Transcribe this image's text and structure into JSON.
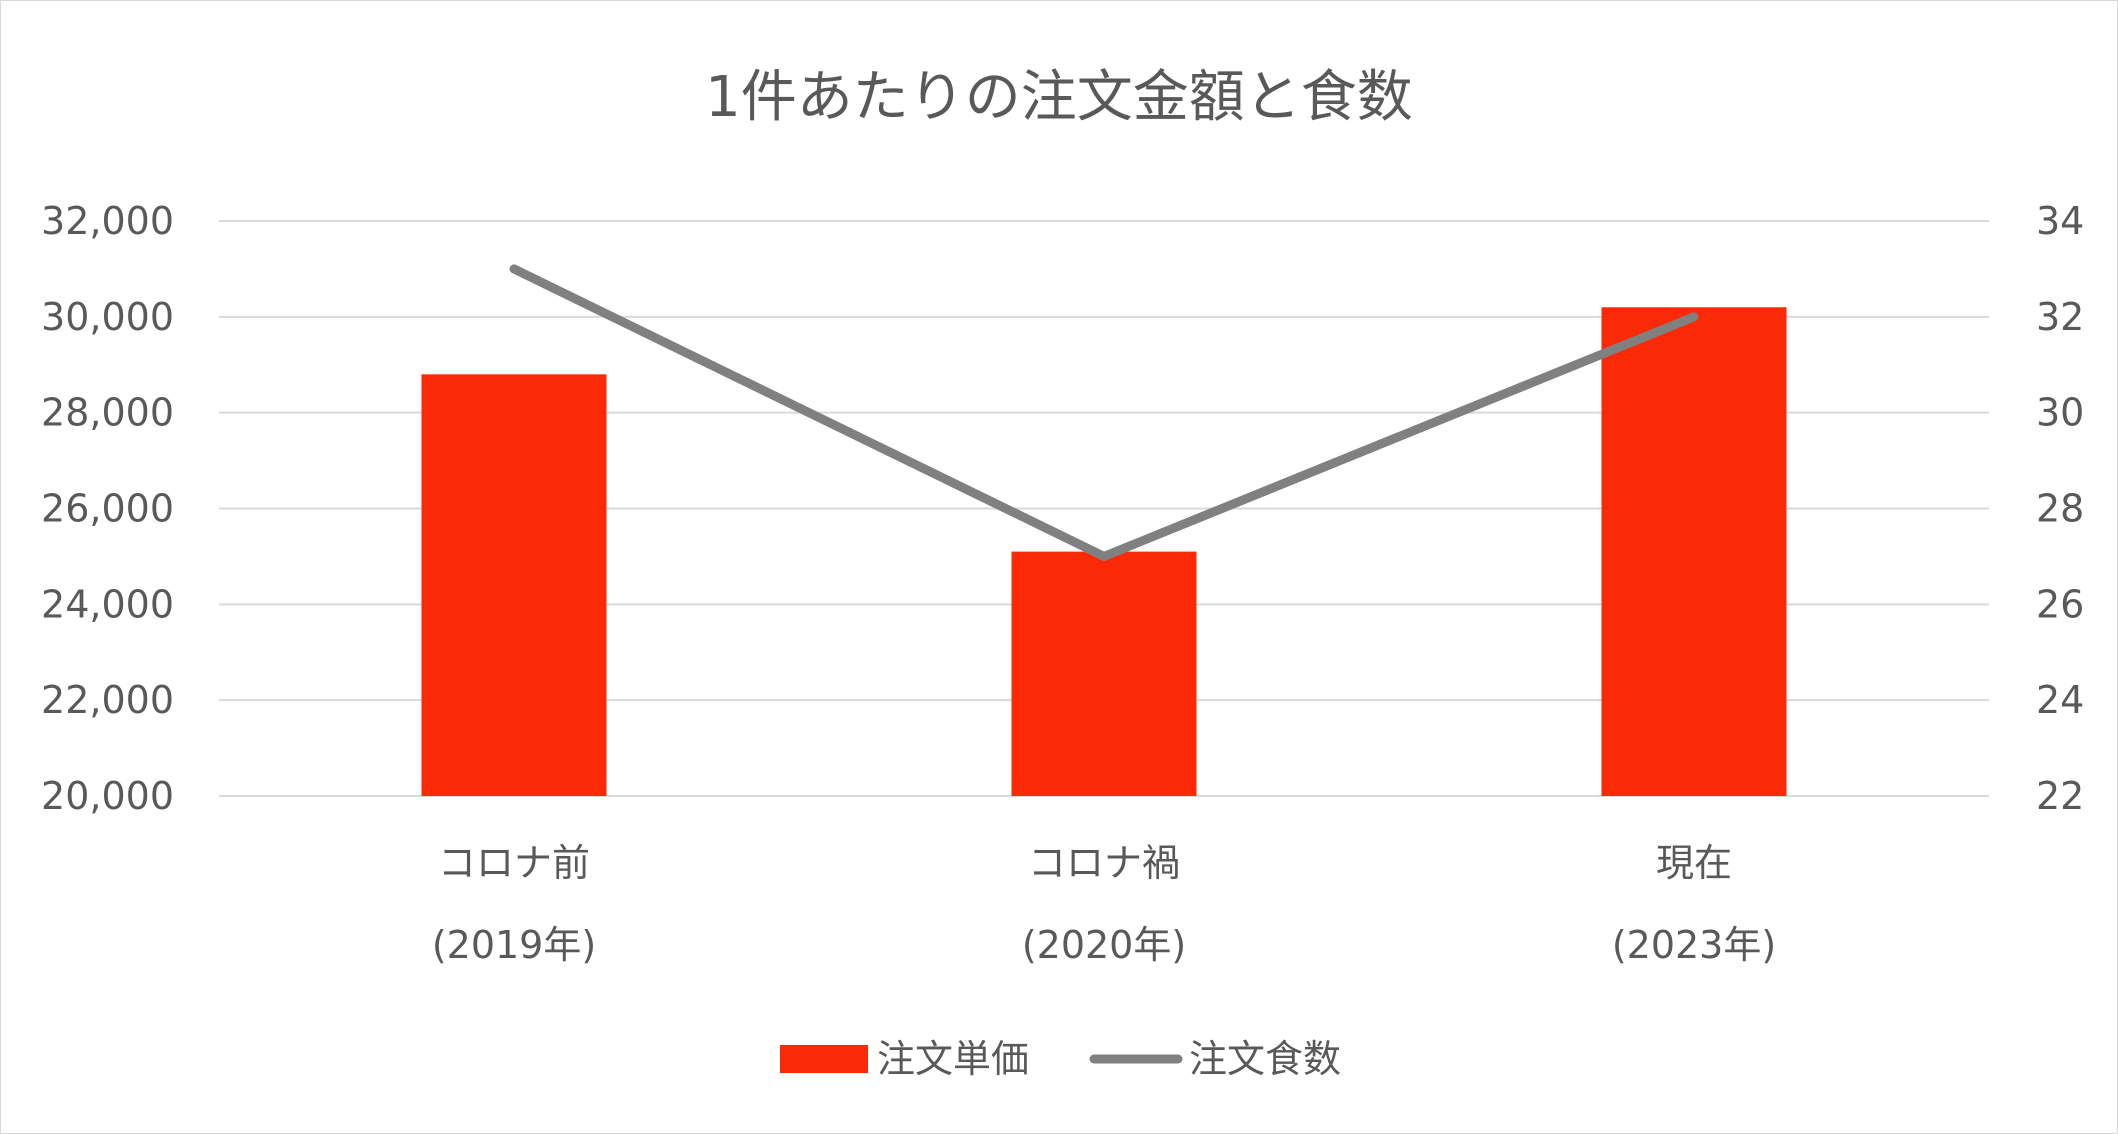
{
  "chart_data": {
    "type": "bar",
    "title": "1件あたりの注文金額と食数",
    "categories": [
      [
        "コロナ前",
        "(2019年)"
      ],
      [
        "コロナ禍",
        "(2020年)"
      ],
      [
        "現在",
        "(2023年)"
      ]
    ],
    "series": [
      {
        "name": "注文単価",
        "type": "bar",
        "axis": "left",
        "color": "#FA2A06",
        "values": [
          28800,
          25100,
          30200
        ]
      },
      {
        "name": "注文食数",
        "type": "line",
        "axis": "right",
        "color": "#808080",
        "values": [
          33,
          27,
          32
        ]
      }
    ],
    "y_left": {
      "min": 20000,
      "max": 32000,
      "ticks": [
        "20,000",
        "22,000",
        "24,000",
        "26,000",
        "28,000",
        "30,000",
        "32,000"
      ],
      "tick_values": [
        20000,
        22000,
        24000,
        26000,
        28000,
        30000,
        32000
      ]
    },
    "y_right": {
      "min": 22,
      "max": 34,
      "ticks": [
        "22",
        "24",
        "26",
        "28",
        "30",
        "32",
        "34"
      ],
      "tick_values": [
        22,
        24,
        26,
        28,
        30,
        32,
        34
      ]
    },
    "grid": true,
    "legend_position": "bottom"
  }
}
